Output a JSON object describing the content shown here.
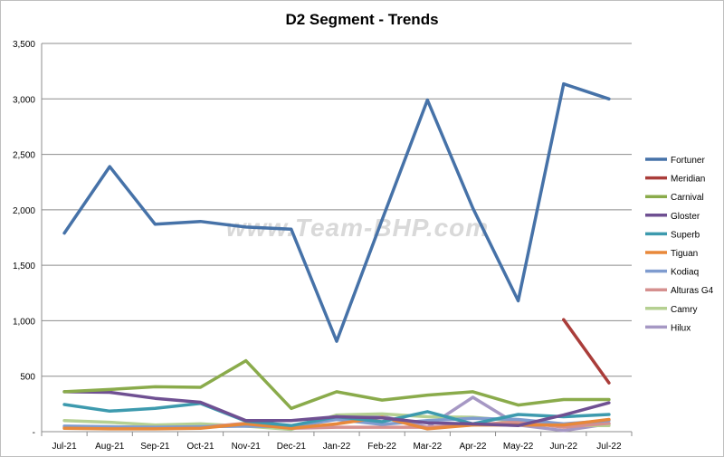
{
  "chart_data": {
    "type": "line",
    "title": "D2 Segment - Trends",
    "xlabel": "",
    "ylabel": "",
    "ylim": [
      0,
      3500
    ],
    "yticks": [
      "-",
      "500",
      "1,000",
      "1,500",
      "2,000",
      "2,500",
      "3,000",
      "3,500"
    ],
    "grid": "horizontal",
    "legend_position": "right",
    "watermark": "www.Team-BHP.com",
    "categories": [
      "Jul-21",
      "Aug-21",
      "Sep-21",
      "Oct-21",
      "Nov-21",
      "Dec-21",
      "Jan-22",
      "Feb-22",
      "Mar-22",
      "Apr-22",
      "May-22",
      "Jun-22",
      "Jul-22"
    ],
    "series": [
      {
        "name": "Fortuner",
        "color": "#4672a8",
        "values": [
          1790,
          2390,
          1870,
          1895,
          1845,
          1825,
          815,
          1910,
          2990,
          2015,
          1180,
          3135,
          3000
        ]
      },
      {
        "name": "Meridian",
        "color": "#aa3d3a",
        "values": [
          null,
          null,
          null,
          null,
          null,
          null,
          null,
          null,
          null,
          null,
          null,
          1010,
          440
        ]
      },
      {
        "name": "Carnival",
        "color": "#8aab4b",
        "values": [
          360,
          380,
          405,
          400,
          640,
          210,
          360,
          285,
          330,
          360,
          240,
          290,
          290
        ]
      },
      {
        "name": "Gloster",
        "color": "#6f5092",
        "values": [
          360,
          355,
          300,
          265,
          100,
          100,
          135,
          125,
          80,
          70,
          55,
          150,
          260
        ]
      },
      {
        "name": "Superb",
        "color": "#3d9aae",
        "values": [
          245,
          185,
          210,
          255,
          95,
          55,
          135,
          90,
          180,
          70,
          155,
          135,
          155
        ]
      },
      {
        "name": "Tiguan",
        "color": "#e8883a",
        "values": [
          30,
          25,
          25,
          30,
          70,
          30,
          70,
          130,
          25,
          60,
          60,
          60,
          110
        ]
      },
      {
        "name": "Kodiaq",
        "color": "#7f9ccf",
        "values": [
          50,
          45,
          40,
          45,
          50,
          45,
          110,
          65,
          100,
          120,
          110,
          70,
          100
        ]
      },
      {
        "name": "Alturas G4",
        "color": "#d5908f",
        "values": [
          40,
          40,
          40,
          40,
          75,
          30,
          40,
          40,
          40,
          60,
          90,
          40,
          75
        ]
      },
      {
        "name": "Camry",
        "color": "#b5d092",
        "values": [
          100,
          85,
          60,
          70,
          50,
          20,
          150,
          160,
          135,
          130,
          95,
          55,
          55
        ]
      },
      {
        "name": "Hilux",
        "color": "#a698c4",
        "values": [
          null,
          null,
          null,
          null,
          null,
          null,
          120,
          140,
          40,
          310,
          60,
          10,
          70
        ]
      }
    ]
  }
}
